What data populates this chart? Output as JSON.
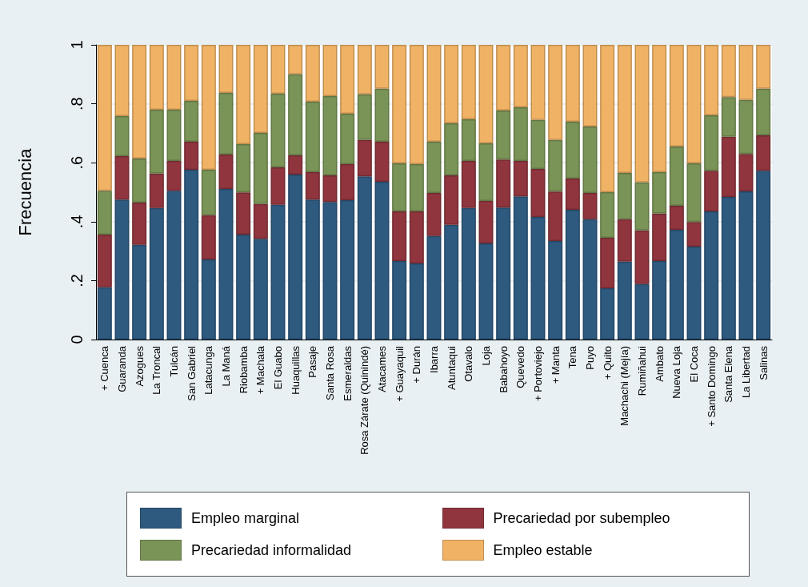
{
  "chart_data": {
    "type": "bar",
    "stacked": true,
    "ylabel": "Frecuencia",
    "categories": [
      "+ Cuenca",
      "Guaranda",
      "Azogues",
      "La Troncal",
      "Tulcán",
      "San Gabriel",
      "Latacunga",
      "La Maná",
      "Riobamba",
      "+ Machala",
      "El Guabo",
      "Huaquillas",
      "Pasaje",
      "Santa Rosa",
      "Esmeraldas",
      "Rosa Zárate (Quinindé)",
      "Atacames",
      "+ Guayaquil",
      "+ Durán",
      "Ibarra",
      "Atuntaqui",
      "Otavalo",
      "Loja",
      "Babahoyo",
      "Quevedo",
      "+ Portoviejo",
      "+ Manta",
      "Tena",
      "Puyo",
      "+ Quito",
      "Machachi (Mejía)",
      "Rumiñahui",
      "Ambato",
      "Nueva Loja",
      "El Coca",
      "+ Santo Domingo",
      "Santa Elena",
      "La Libertad",
      "Salinas"
    ],
    "series": [
      {
        "name": "Empleo marginal",
        "color": "#2e5a80",
        "values": [
          0.177,
          0.475,
          0.321,
          0.446,
          0.505,
          0.576,
          0.272,
          0.511,
          0.356,
          0.342,
          0.457,
          0.56,
          0.475,
          0.467,
          0.473,
          0.554,
          0.535,
          0.266,
          0.258,
          0.351,
          0.389,
          0.446,
          0.326,
          0.448,
          0.486,
          0.416,
          0.334,
          0.44,
          0.408,
          0.174,
          0.264,
          0.188,
          0.266,
          0.372,
          0.315,
          0.435,
          0.484,
          0.503,
          0.573
        ]
      },
      {
        "name": "Precariedad por subempleo",
        "color": "#90353e",
        "values": [
          0.179,
          0.147,
          0.144,
          0.117,
          0.101,
          0.095,
          0.15,
          0.117,
          0.143,
          0.118,
          0.127,
          0.065,
          0.093,
          0.09,
          0.122,
          0.123,
          0.136,
          0.169,
          0.177,
          0.146,
          0.168,
          0.16,
          0.144,
          0.163,
          0.12,
          0.163,
          0.168,
          0.106,
          0.089,
          0.171,
          0.144,
          0.182,
          0.161,
          0.082,
          0.084,
          0.138,
          0.204,
          0.127,
          0.12
        ]
      },
      {
        "name": "Precariedad informalidad",
        "color": "#7a9356",
        "values": [
          0.149,
          0.136,
          0.149,
          0.217,
          0.174,
          0.139,
          0.154,
          0.209,
          0.164,
          0.241,
          0.25,
          0.275,
          0.239,
          0.269,
          0.171,
          0.155,
          0.18,
          0.163,
          0.16,
          0.174,
          0.177,
          0.141,
          0.196,
          0.166,
          0.182,
          0.166,
          0.175,
          0.193,
          0.226,
          0.155,
          0.157,
          0.163,
          0.141,
          0.201,
          0.199,
          0.188,
          0.135,
          0.183,
          0.158
        ]
      },
      {
        "name": "Empleo estable",
        "color": "#f0b264",
        "values": [
          0.495,
          0.242,
          0.386,
          0.22,
          0.22,
          0.19,
          0.424,
          0.163,
          0.337,
          0.299,
          0.166,
          0.1,
          0.193,
          0.174,
          0.234,
          0.168,
          0.149,
          0.402,
          0.405,
          0.329,
          0.266,
          0.253,
          0.334,
          0.223,
          0.212,
          0.255,
          0.323,
          0.261,
          0.277,
          0.5,
          0.435,
          0.467,
          0.432,
          0.345,
          0.402,
          0.239,
          0.177,
          0.187,
          0.149
        ]
      }
    ],
    "ylim": [
      0,
      1
    ],
    "yticks": [
      0,
      {
        "value": 0.2,
        "label": ".2"
      },
      {
        "value": 0.4,
        "label": ".4"
      },
      {
        "value": 0.6,
        "label": ".6"
      },
      {
        "value": 0.8,
        "label": ".8"
      },
      1
    ],
    "grid": "y",
    "legend": "bottom"
  }
}
